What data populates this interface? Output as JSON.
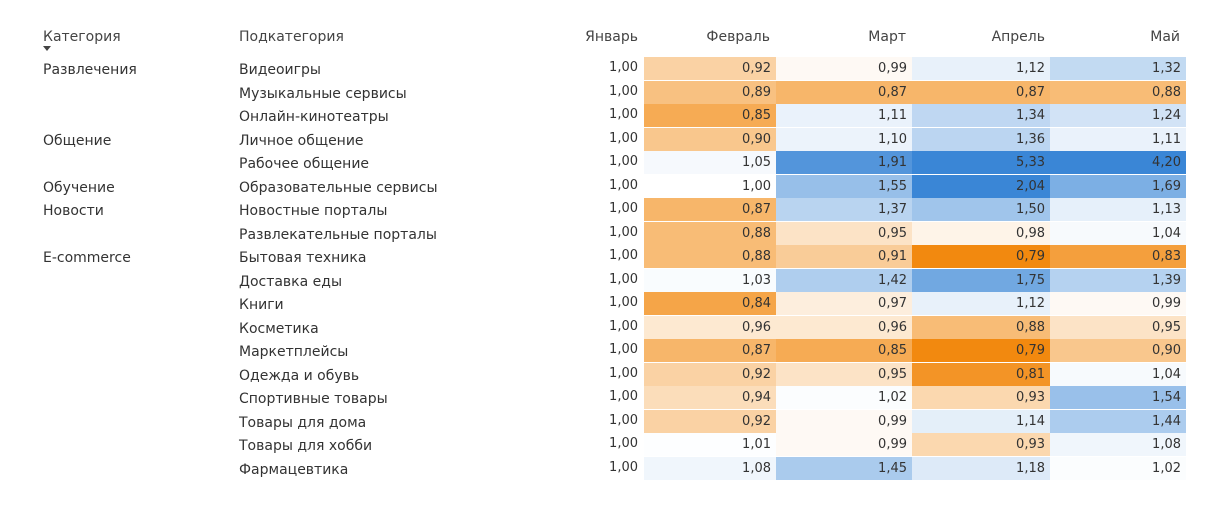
{
  "columns": {
    "category": "Категория",
    "subcategory": "Подкатегория",
    "months": [
      "Январь",
      "Февраль",
      "Март",
      "Апрель",
      "Май"
    ]
  },
  "sort_indicator": "sort-descending-icon",
  "colors": {
    "low": "#f2890f",
    "neutral": "#ffffff",
    "high": "#3a86d6"
  },
  "chart_data": {
    "type": "heatmap",
    "categories": [
      "Развлечения",
      "Общение",
      "Обучение",
      "Новости",
      "E-commerce"
    ],
    "months": [
      "Январь",
      "Февраль",
      "Март",
      "Апрель",
      "Май"
    ],
    "rows": [
      {
        "category": "Развлечения",
        "subcategory": "Видеоигры",
        "values": [
          "1,00",
          "0,92",
          "0,99",
          "1,12",
          "1,32"
        ]
      },
      {
        "category": "",
        "subcategory": "Музыкальные сервисы",
        "values": [
          "1,00",
          "0,89",
          "0,87",
          "0,87",
          "0,88"
        ]
      },
      {
        "category": "",
        "subcategory": "Онлайн-кинотеатры",
        "values": [
          "1,00",
          "0,85",
          "1,11",
          "1,34",
          "1,24"
        ]
      },
      {
        "category": "Общение",
        "subcategory": "Личное общение",
        "values": [
          "1,00",
          "0,90",
          "1,10",
          "1,36",
          "1,11"
        ]
      },
      {
        "category": "",
        "subcategory": "Рабочее общение",
        "values": [
          "1,00",
          "1,05",
          "1,91",
          "5,33",
          "4,20"
        ]
      },
      {
        "category": "Обучение",
        "subcategory": "Образовательные сервисы",
        "values": [
          "1,00",
          "1,00",
          "1,55",
          "2,04",
          "1,69"
        ]
      },
      {
        "category": "Новости",
        "subcategory": "Новостные порталы",
        "values": [
          "1,00",
          "0,87",
          "1,37",
          "1,50",
          "1,13"
        ]
      },
      {
        "category": "",
        "subcategory": "Развлекательные порталы",
        "values": [
          "1,00",
          "0,88",
          "0,95",
          "0,98",
          "1,04"
        ]
      },
      {
        "category": "E-commerce",
        "subcategory": "Бытовая техника",
        "values": [
          "1,00",
          "0,88",
          "0,91",
          "0,79",
          "0,83"
        ]
      },
      {
        "category": "",
        "subcategory": "Доставка еды",
        "values": [
          "1,00",
          "1,03",
          "1,42",
          "1,75",
          "1,39"
        ]
      },
      {
        "category": "",
        "subcategory": "Книги",
        "values": [
          "1,00",
          "0,84",
          "0,97",
          "1,12",
          "0,99"
        ]
      },
      {
        "category": "",
        "subcategory": "Косметика",
        "values": [
          "1,00",
          "0,96",
          "0,96",
          "0,88",
          "0,95"
        ]
      },
      {
        "category": "",
        "subcategory": "Маркетплейсы",
        "values": [
          "1,00",
          "0,87",
          "0,85",
          "0,79",
          "0,90"
        ]
      },
      {
        "category": "",
        "subcategory": "Одежда и обувь",
        "values": [
          "1,00",
          "0,92",
          "0,95",
          "0,81",
          "1,04"
        ]
      },
      {
        "category": "",
        "subcategory": "Спортивные товары",
        "values": [
          "1,00",
          "0,94",
          "1,02",
          "0,93",
          "1,54"
        ]
      },
      {
        "category": "",
        "subcategory": "Товары для дома",
        "values": [
          "1,00",
          "0,92",
          "0,99",
          "1,14",
          "1,44"
        ]
      },
      {
        "category": "",
        "subcategory": "Товары для хобби",
        "values": [
          "1,00",
          "1,01",
          "0,99",
          "0,93",
          "1,08"
        ]
      },
      {
        "category": "",
        "subcategory": "Фармацевтика",
        "values": [
          "1,00",
          "1,08",
          "1,45",
          "1,18",
          "1,02"
        ]
      }
    ]
  }
}
